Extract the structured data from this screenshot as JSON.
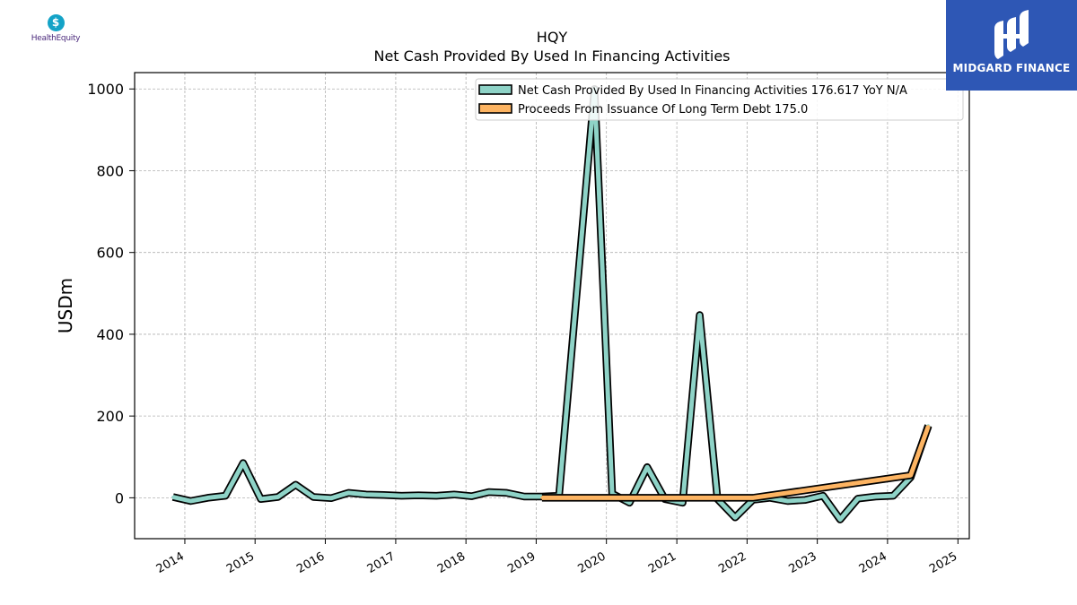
{
  "header": {
    "ticker": "HQY",
    "subtitle": "Net Cash Provided By Used In Financing Activities"
  },
  "brands": {
    "left_logo_text": "HealthEquity",
    "right_logo_text": "MIDGARD FINANCE"
  },
  "colors": {
    "series_net_cash": "#8ed3c7",
    "series_proceeds": "#fdb462",
    "outline": "#000000",
    "grid": "#b0b0b0",
    "brand_right_bg": "#2e57b5"
  },
  "chart_data": {
    "type": "line",
    "ylabel": "USDm",
    "ylim": [
      -100,
      1040
    ],
    "xlim": [
      "2013-04-15",
      "2025-03-01"
    ],
    "yticks": [
      0,
      200,
      400,
      600,
      800,
      1000
    ],
    "xticks": [
      "2014",
      "2015",
      "2016",
      "2017",
      "2018",
      "2019",
      "2020",
      "2021",
      "2022",
      "2023",
      "2024",
      "2025"
    ],
    "grid": true,
    "legend_position": "top-right",
    "series": [
      {
        "name": "Net Cash Provided By Used In Financing Activities  176.617 YoY N/A",
        "points": [
          [
            "2013-10-31",
            2
          ],
          [
            "2014-01-31",
            -8
          ],
          [
            "2014-04-30",
            0
          ],
          [
            "2014-07-31",
            5
          ],
          [
            "2014-10-31",
            85
          ],
          [
            "2015-01-31",
            -3
          ],
          [
            "2015-04-30",
            2
          ],
          [
            "2015-07-31",
            32
          ],
          [
            "2015-10-31",
            2
          ],
          [
            "2016-01-31",
            -1
          ],
          [
            "2016-04-30",
            12
          ],
          [
            "2016-07-31",
            8
          ],
          [
            "2016-10-31",
            7
          ],
          [
            "2017-01-31",
            5
          ],
          [
            "2017-04-30",
            6
          ],
          [
            "2017-07-31",
            5
          ],
          [
            "2017-10-31",
            8
          ],
          [
            "2018-01-31",
            4
          ],
          [
            "2018-04-30",
            14
          ],
          [
            "2018-07-31",
            12
          ],
          [
            "2018-10-31",
            3
          ],
          [
            "2019-01-31",
            3
          ],
          [
            "2019-04-30",
            5
          ],
          [
            "2019-10-31",
            1000
          ],
          [
            "2020-01-31",
            10
          ],
          [
            "2020-04-30",
            -12
          ],
          [
            "2020-07-31",
            75
          ],
          [
            "2020-10-31",
            -3
          ],
          [
            "2021-01-31",
            -12
          ],
          [
            "2021-04-30",
            447
          ],
          [
            "2021-07-31",
            -3
          ],
          [
            "2021-10-31",
            -48
          ],
          [
            "2022-01-31",
            -5
          ],
          [
            "2022-04-30",
            0
          ],
          [
            "2022-07-31",
            -8
          ],
          [
            "2022-10-31",
            -5
          ],
          [
            "2023-01-31",
            5
          ],
          [
            "2023-04-30",
            -53
          ],
          [
            "2023-07-31",
            -2
          ],
          [
            "2023-10-31",
            3
          ],
          [
            "2024-01-31",
            5
          ],
          [
            "2024-04-30",
            50
          ],
          [
            "2024-07-31",
            176.617
          ]
        ]
      },
      {
        "name": "Proceeds From Issuance Of Long Term Debt  175.0",
        "points": [
          [
            "2019-01-31",
            0
          ],
          [
            "2022-01-31",
            0
          ],
          [
            "2024-04-30",
            55
          ],
          [
            "2024-07-31",
            175.0
          ]
        ]
      }
    ]
  }
}
